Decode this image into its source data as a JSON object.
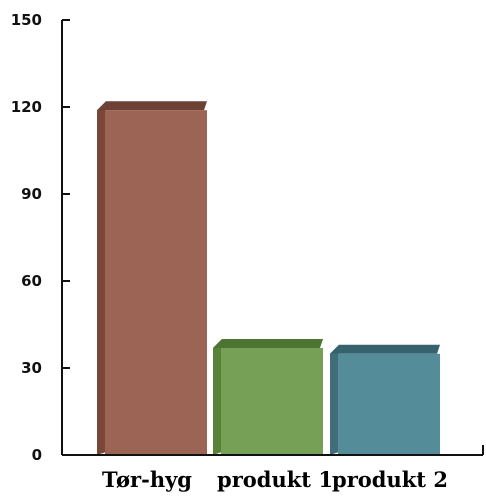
{
  "chart_data": {
    "type": "bar",
    "title": "",
    "xlabel": "",
    "ylabel": "",
    "categories": [
      "Tør-hyg",
      "produkt 1",
      "produkt 2"
    ],
    "values": [
      122,
      40,
      38
    ],
    "ylim": [
      0,
      150
    ],
    "yticks": [
      0,
      30,
      60,
      90,
      120,
      150
    ],
    "grid": false,
    "legend": "none",
    "bar_style": "3d",
    "colors": {
      "bars": [
        "#9c6454",
        "#76a055",
        "#558c9a"
      ],
      "bar_tops": [
        "#6d4135",
        "#4e7434",
        "#36626e"
      ],
      "bar_sides": [
        "#7a4638",
        "#588238",
        "#3f6d79"
      ],
      "axis": "#111111"
    }
  }
}
